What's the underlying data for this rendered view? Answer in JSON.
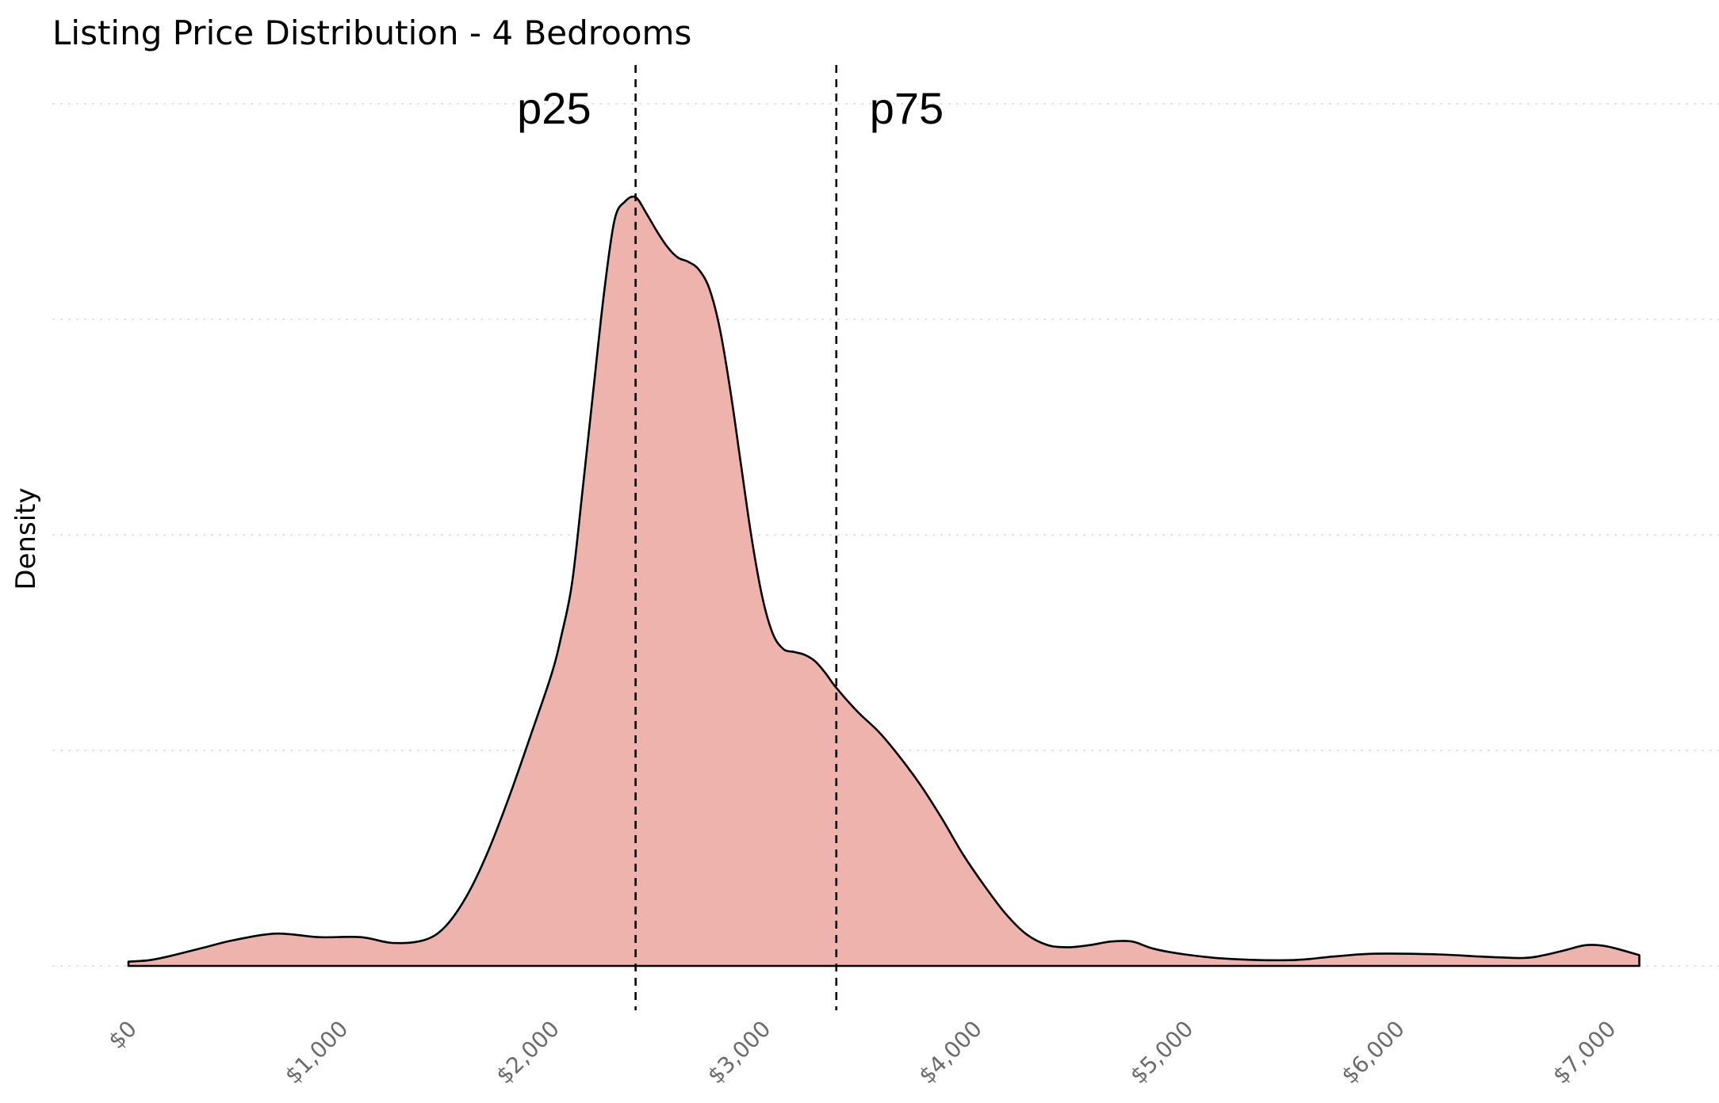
{
  "chart_data": {
    "type": "area",
    "title": "Listing Price Distribution - 4 Bedrooms",
    "xlabel": "",
    "ylabel": "Density",
    "xlim": [
      0,
      7500
    ],
    "ylim": [
      0,
      0.00123
    ],
    "x_ticks": [
      {
        "value": 0,
        "label": "$0"
      },
      {
        "value": 1000,
        "label": "$1,000"
      },
      {
        "value": 2000,
        "label": "$2,000"
      },
      {
        "value": 3000,
        "label": "$3,000"
      },
      {
        "value": 4000,
        "label": "$4,000"
      },
      {
        "value": 5000,
        "label": "$5,000"
      },
      {
        "value": 6000,
        "label": "$6,000"
      },
      {
        "value": 7000,
        "label": "$7,000"
      }
    ],
    "y_gridlines": [
      0,
      0.0003,
      0.0006,
      0.0009,
      0.0012
    ],
    "grid": true,
    "fill_color": "#efb3ae",
    "line_color": "#000000",
    "series": [
      {
        "x": [
          0,
          100,
          200,
          350,
          500,
          700,
          900,
          1100,
          1250,
          1400,
          1500,
          1600,
          1700,
          1800,
          1900,
          2000,
          2050,
          2100,
          2150,
          2200,
          2250,
          2300,
          2350,
          2400,
          2450,
          2500,
          2550,
          2600,
          2650,
          2700,
          2750,
          2800,
          2850,
          2900,
          2950,
          3000,
          3050,
          3100,
          3150,
          3200,
          3250,
          3300,
          3350,
          3450,
          3550,
          3650,
          3750,
          3850,
          3950,
          4050,
          4150,
          4250,
          4350,
          4450,
          4550,
          4650,
          4750,
          4850,
          5000,
          5200,
          5500,
          5700,
          5900,
          6200,
          6400,
          6600,
          6700,
          6800,
          6900,
          7000,
          7150
        ],
        "y": [
          6e-06,
          8e-06,
          1.4e-05,
          2.5e-05,
          3.6e-05,
          4.5e-05,
          4e-05,
          4e-05,
          3.2e-05,
          3.6e-05,
          5.5e-05,
          9.7e-05,
          0.000158,
          0.000234,
          0.000318,
          0.000404,
          0.000461,
          0.000534,
          0.000665,
          0.000801,
          0.000935,
          0.001038,
          0.001064,
          0.00107,
          0.001048,
          0.001023,
          0.001001,
          0.000986,
          0.00098,
          0.000969,
          0.000942,
          0.000885,
          0.000798,
          0.000695,
          0.000594,
          0.000513,
          0.000462,
          0.000441,
          0.000437,
          0.000433,
          0.000424,
          0.000407,
          0.000387,
          0.000354,
          0.000326,
          0.000291,
          0.000251,
          0.000205,
          0.000155,
          0.000112,
          7.3e-05,
          4.4e-05,
          2.9e-05,
          2.6e-05,
          2.9e-05,
          3.4e-05,
          3.4e-05,
          2.4e-05,
          1.6e-05,
          1e-05,
          8e-06,
          1.3e-05,
          1.7e-05,
          1.6e-05,
          1.3e-05,
          1.1e-05,
          1.5e-05,
          2.2e-05,
          2.9e-05,
          2.7e-05,
          1.5e-05
        ]
      }
    ],
    "annotations": [
      {
        "label": "p25",
        "x": 2400
      },
      {
        "label": "p75",
        "x": 3350
      }
    ]
  }
}
